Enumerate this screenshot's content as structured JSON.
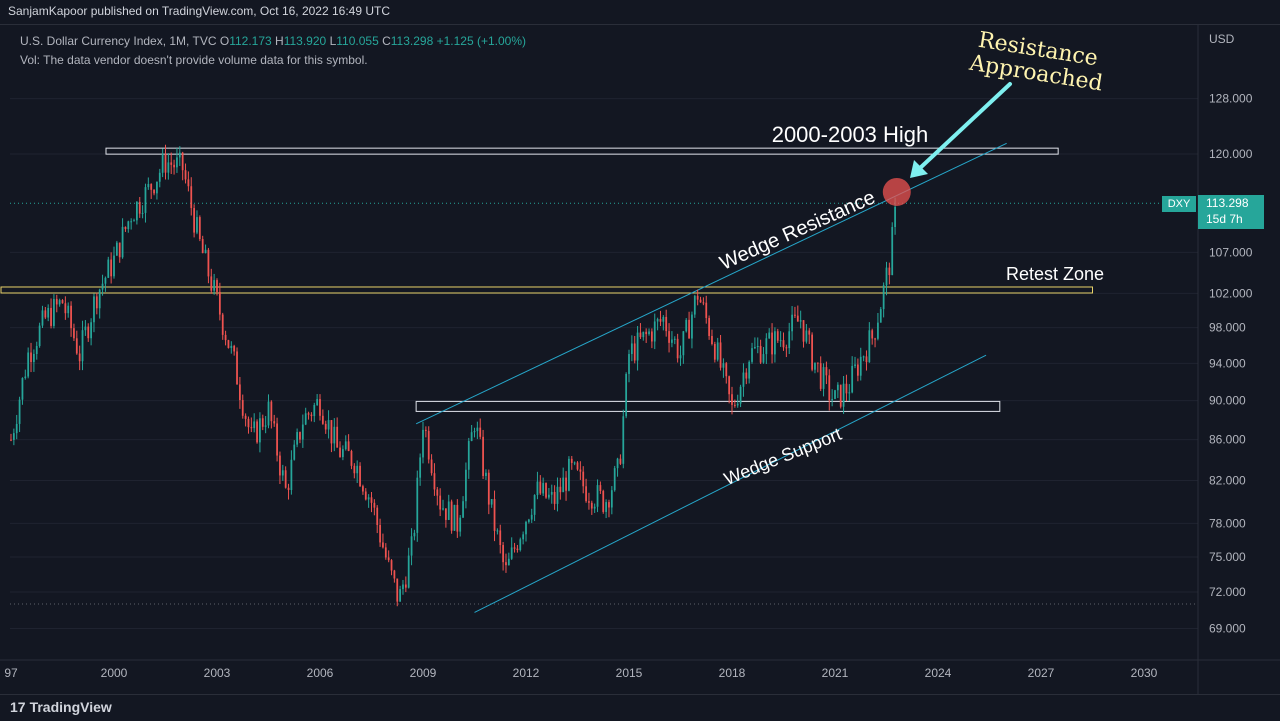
{
  "header": {
    "published": "SanjamKapoor published on TradingView.com, Oct 16, 2022 16:49 UTC"
  },
  "legend": {
    "symbol": "U.S. Dollar Currency Index, 1M, TVC",
    "o_label": "O",
    "o_value": "112.173",
    "h_label": "H",
    "h_value": "113.920",
    "l_label": "L",
    "l_value": "110.055",
    "c_label": "C",
    "c_value": "113.298",
    "change": "+1.125 (+1.00%)",
    "vol_note": "Vol: The data vendor doesn't provide volume data for this symbol."
  },
  "price_tag": {
    "symbol": "DXY",
    "price": "113.298",
    "countdown": "15d 7h"
  },
  "footer": {
    "brand": "TradingView",
    "brand_mark": "17"
  },
  "chart_data": {
    "type": "candlestick",
    "currency": "USD",
    "y_scale": "log",
    "ylim": [
      67.5,
      138
    ],
    "xlim": [
      1997,
      2031.5
    ],
    "y_ticks": [
      "128.000",
      "120.000",
      "107.000",
      "102.000",
      "98.000",
      "94.000",
      "90.000",
      "86.000",
      "82.000",
      "78.000",
      "75.000",
      "72.000",
      "69.000"
    ],
    "x_ticks": [
      "97",
      "2000",
      "2003",
      "2006",
      "2009",
      "2012",
      "2015",
      "2018",
      "2021",
      "2024",
      "2027",
      "2030"
    ],
    "colors": {
      "up": "#26a69a",
      "down": "#ef5350",
      "wedge": "#26a6c9",
      "retest": "#e8d26a",
      "arrow": "#7ff0f0",
      "highlight": "#ef5350"
    },
    "price_path": [
      [
        1997.0,
        86
      ],
      [
        1997.5,
        95
      ],
      [
        1998.0,
        99
      ],
      [
        1998.5,
        101
      ],
      [
        1999.0,
        95
      ],
      [
        1999.5,
        102
      ],
      [
        2000.0,
        106
      ],
      [
        2000.5,
        112
      ],
      [
        2001.0,
        115
      ],
      [
        2001.5,
        119
      ],
      [
        2002.0,
        118
      ],
      [
        2002.5,
        108
      ],
      [
        2003.0,
        101
      ],
      [
        2003.5,
        94
      ],
      [
        2004.0,
        86
      ],
      [
        2004.5,
        89
      ],
      [
        2005.0,
        81
      ],
      [
        2005.5,
        88
      ],
      [
        2006.0,
        90
      ],
      [
        2006.5,
        85
      ],
      [
        2007.0,
        84
      ],
      [
        2007.5,
        80
      ],
      [
        2008.0,
        74
      ],
      [
        2008.3,
        71.3
      ],
      [
        2008.7,
        76
      ],
      [
        2009.0,
        88
      ],
      [
        2009.5,
        80
      ],
      [
        2010.0,
        78
      ],
      [
        2010.5,
        88
      ],
      [
        2011.0,
        79
      ],
      [
        2011.4,
        73.5
      ],
      [
        2011.8,
        77
      ],
      [
        2012.3,
        81
      ],
      [
        2012.8,
        80
      ],
      [
        2013.3,
        83
      ],
      [
        2013.8,
        81
      ],
      [
        2014.3,
        80
      ],
      [
        2014.7,
        83
      ],
      [
        2015.0,
        95
      ],
      [
        2015.5,
        97
      ],
      [
        2016.0,
        99
      ],
      [
        2016.5,
        95
      ],
      [
        2017.0,
        102
      ],
      [
        2017.5,
        96
      ],
      [
        2018.0,
        89
      ],
      [
        2018.5,
        95
      ],
      [
        2019.0,
        96
      ],
      [
        2019.5,
        97
      ],
      [
        2020.0,
        99
      ],
      [
        2020.3,
        95
      ],
      [
        2020.8,
        91
      ],
      [
        2021.0,
        90
      ],
      [
        2021.4,
        91.5
      ],
      [
        2021.8,
        95
      ],
      [
        2022.1,
        97
      ],
      [
        2022.4,
        102
      ],
      [
        2022.6,
        106
      ],
      [
        2022.8,
        113.3
      ]
    ],
    "levels": [
      {
        "name": "2000-2003 High",
        "y": 120.4,
        "x_start": 2000.0,
        "x_end": 2027.5
      },
      {
        "name": "",
        "y": 89.4,
        "x_start": 2008.8,
        "x_end": 2025.8
      },
      {
        "name": "Retest Zone",
        "y": 102.4,
        "x_start": 1997.0,
        "x_end": 2028.5
      }
    ],
    "wedge": {
      "resistance": {
        "from": [
          2008.8,
          87.6
        ],
        "to": [
          2026.0,
          121.5
        ]
      },
      "support": {
        "from": [
          2010.5,
          70.3
        ],
        "to": [
          2025.4,
          94.9
        ]
      }
    },
    "annotations": [
      "Resistance",
      "Approached",
      "2000-2003 High",
      "Wedge Resistance",
      "Retest Zone",
      "Wedge Support"
    ]
  }
}
